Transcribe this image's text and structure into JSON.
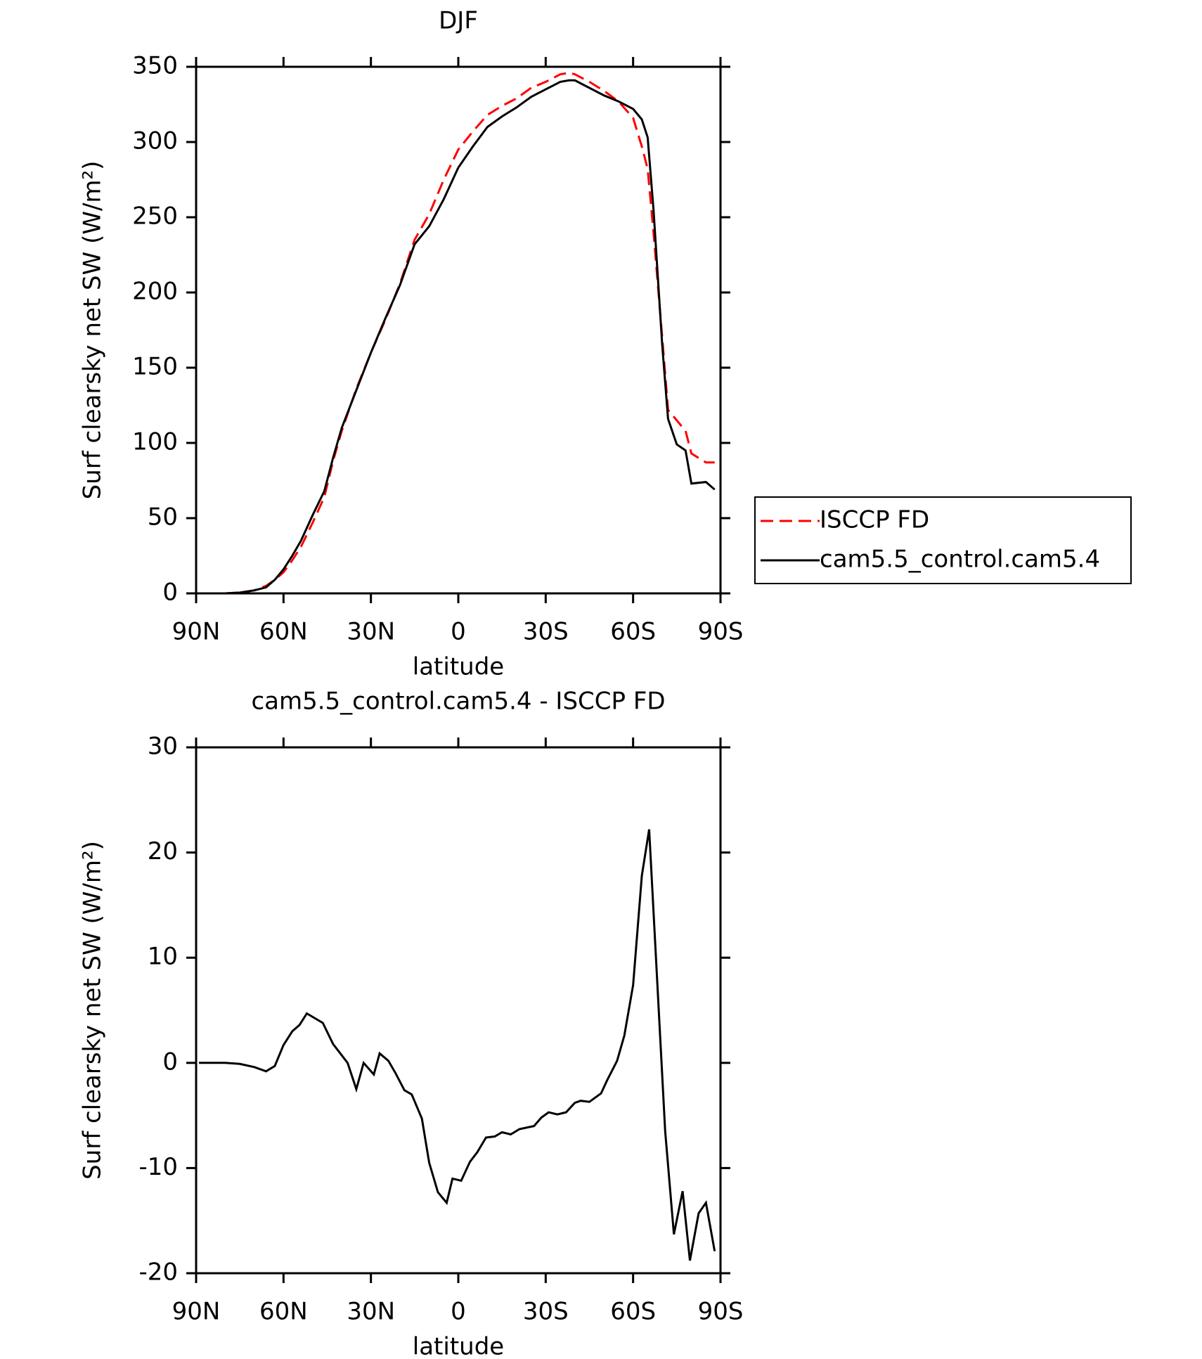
{
  "chart_data": [
    {
      "type": "line",
      "title": "DJF",
      "xlabel": "latitude",
      "ylabel": "Surf clearsky net SW (W/m²)",
      "x": [
        80,
        75,
        70,
        66,
        63,
        60,
        57,
        54,
        50,
        46,
        43,
        40,
        35,
        30,
        25,
        20,
        15,
        10,
        5,
        0,
        -5,
        -10,
        -15,
        -20,
        -25,
        -30,
        -35,
        -38,
        -40,
        -45,
        -50,
        -55,
        -60,
        -63,
        -65,
        -67,
        -70,
        -72,
        -75,
        -78,
        -80,
        -85,
        -88
      ],
      "series": [
        {
          "name": "ISCCP FD",
          "color": "#ff0000",
          "linestyle": "dashed",
          "values": [
            0,
            0.5,
            2,
            5,
            9,
            14,
            22,
            31,
            47,
            64,
            88,
            108,
            136,
            160,
            182,
            206,
            235,
            252,
            275,
            295,
            307,
            318,
            324,
            329,
            336,
            340,
            345,
            346,
            345,
            340,
            334,
            327,
            316,
            297,
            282,
            240,
            170,
            122,
            115,
            108,
            93,
            87,
            87
          ]
        },
        {
          "name": "cam5.5_control.cam5.4",
          "color": "#000000",
          "linestyle": "solid",
          "values": [
            0,
            0.5,
            2,
            4,
            9,
            16,
            25,
            35,
            52,
            68,
            90,
            110,
            135,
            160,
            183,
            205,
            232,
            244,
            262,
            283,
            297,
            310,
            317,
            323,
            330,
            335,
            340,
            341,
            341,
            336,
            331,
            327,
            322,
            315,
            303,
            255,
            165,
            116,
            99,
            95,
            73,
            74,
            69
          ]
        }
      ],
      "xlim": [
        90,
        -90
      ],
      "xticks": [
        {
          "value": 90,
          "label": "90N"
        },
        {
          "value": 60,
          "label": "60N"
        },
        {
          "value": 30,
          "label": "30N"
        },
        0,
        {
          "value": -30,
          "label": "30S"
        },
        {
          "value": -60,
          "label": "60S"
        },
        {
          "value": -90,
          "label": "90S"
        }
      ],
      "ylim": [
        0,
        350
      ],
      "yticks": [
        0,
        50,
        100,
        150,
        200,
        250,
        300,
        350
      ],
      "legend": "outside-right"
    },
    {
      "type": "line",
      "title": "cam5.5_control.cam5.4 - ISCCP FD",
      "xlabel": "latitude",
      "ylabel": "Surf clearsky net SW (W/m²)",
      "x": [
        89,
        80,
        75,
        70,
        66,
        63,
        60,
        57,
        54.5,
        52,
        46.5,
        43,
        38,
        35,
        32.5,
        29,
        27,
        24,
        21.5,
        18.5,
        16,
        12.5,
        10,
        7,
        4,
        2,
        -1,
        -4,
        -6.5,
        -9.5,
        -12.5,
        -15,
        -18,
        -21,
        -26,
        -28.5,
        -31,
        -34,
        -37,
        -40,
        -42,
        -45,
        -49,
        -51,
        -54.5,
        -57,
        -60,
        -63,
        -65.5,
        -71,
        -74,
        -77,
        -79.5,
        -82.5,
        -85,
        -88
      ],
      "series": [
        {
          "color": "#000000",
          "linestyle": "solid",
          "values": [
            0,
            0,
            -0.1,
            -0.4,
            -0.8,
            -0.3,
            1.7,
            3,
            3.6,
            4.7,
            3.8,
            1.8,
            0,
            -2.5,
            0,
            -1.1,
            0.9,
            0.2,
            -1,
            -2.6,
            -3,
            -5.3,
            -9.5,
            -12.3,
            -13.3,
            -11,
            -11.2,
            -9.4,
            -8.5,
            -7.1,
            -7,
            -6.6,
            -6.8,
            -6.3,
            -6,
            -5.2,
            -4.7,
            -4.9,
            -4.7,
            -3.8,
            -3.6,
            -3.7,
            -2.9,
            -1.7,
            0.2,
            2.6,
            7.4,
            17.8,
            22.2,
            -6.5,
            -16.3,
            -12.2,
            -18.8,
            -14.3,
            -13.3,
            -17.9
          ]
        }
      ],
      "xlim": [
        90,
        -90
      ],
      "xticks": [
        {
          "value": 90,
          "label": "90N"
        },
        {
          "value": 60,
          "label": "60N"
        },
        {
          "value": 30,
          "label": "30N"
        },
        0,
        {
          "value": -30,
          "label": "30S"
        },
        {
          "value": -60,
          "label": "60S"
        },
        {
          "value": -90,
          "label": "90S"
        }
      ],
      "ylim": [
        -20,
        30
      ],
      "yticks": [
        -20,
        -10,
        0,
        10,
        20,
        30
      ]
    }
  ]
}
